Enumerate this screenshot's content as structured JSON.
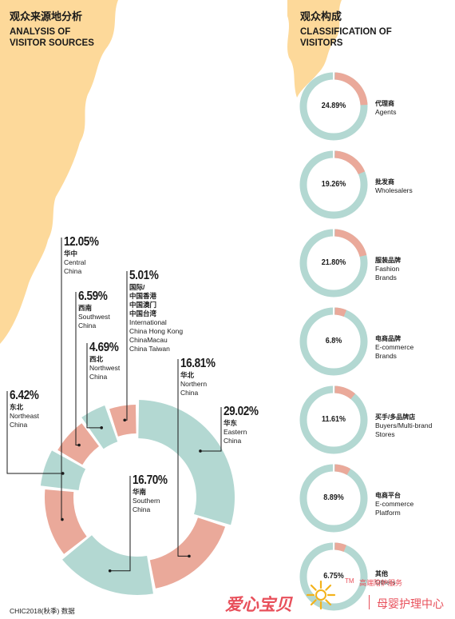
{
  "left_panel": {
    "title_cn": "观众来源地分析",
    "title_en_1": "ANALYSIS OF",
    "title_en_2": "VISITOR SOURCES"
  },
  "right_panel": {
    "title_cn": "观众构成",
    "title_en_1": "CLASSIFICATION OF",
    "title_en_2": "VISITORS"
  },
  "colors": {
    "teal": "#b3d8d2",
    "salmon": "#eaa99a",
    "map": "#fdd99a"
  },
  "chart_data": [
    {
      "type": "pie",
      "title": "",
      "slices": [
        {
          "value": "29.02%",
          "cn": "华东",
          "en": [
            "Eastern",
            "China"
          ],
          "fraction": 0.2902,
          "color": "#b3d8d2"
        },
        {
          "value": "16.81%",
          "cn": "华北",
          "en": [
            "Northern",
            "China"
          ],
          "fraction": 0.1681,
          "color": "#eaa99a"
        },
        {
          "value": "16.70%",
          "cn": "华南",
          "en": [
            "Southern",
            "China"
          ],
          "fraction": 0.167,
          "color": "#b3d8d2"
        },
        {
          "value": "12.05%",
          "cn": "华中",
          "en": [
            "Central",
            "China"
          ],
          "fraction": 0.1205,
          "color": "#eaa99a"
        },
        {
          "value": "6.42%",
          "cn": "东北",
          "en": [
            "Northeast",
            "China"
          ],
          "fraction": 0.0642,
          "color": "#b3d8d2"
        },
        {
          "value": "6.59%",
          "cn": "西南",
          "en": [
            "Southwest",
            "China"
          ],
          "fraction": 0.0659,
          "color": "#eaa99a"
        },
        {
          "value": "4.69%",
          "cn": "西北",
          "en": [
            "Northwest",
            "China"
          ],
          "fraction": 0.0469,
          "color": "#b3d8d2"
        },
        {
          "value": "5.01%",
          "cn": [
            "国际/",
            "中国香港",
            "中国澳门",
            "中国台湾"
          ],
          "en": [
            "International",
            "China Hong Kong",
            "ChinaMacau",
            "China Taiwan"
          ],
          "fraction": 0.0501,
          "color": "#eaa99a"
        }
      ]
    },
    {
      "type": "pie",
      "title": "",
      "rings": [
        {
          "value": "24.89%",
          "fraction": 0.2489,
          "cn": "代理商",
          "en": [
            "Agents"
          ]
        },
        {
          "value": "19.26%",
          "fraction": 0.1926,
          "cn": "批发商",
          "en": [
            "Wholesalers"
          ]
        },
        {
          "value": "21.80%",
          "fraction": 0.218,
          "cn": "服装品牌",
          "en": [
            "Fashion",
            "Brands"
          ]
        },
        {
          "value": "6.8%",
          "fraction": 0.068,
          "cn": "电商品牌",
          "en": [
            "E-commerce",
            "Brands"
          ]
        },
        {
          "value": "11.61%",
          "fraction": 0.1161,
          "cn": "买手/多品牌店",
          "en": [
            "Buyers/Multi-brand",
            "Stores"
          ]
        },
        {
          "value": "8.89%",
          "fraction": 0.0889,
          "cn": "电商平台",
          "en": [
            "E-commerce",
            "Platform"
          ]
        },
        {
          "value": "6.75%",
          "fraction": 0.0675,
          "cn": "其他",
          "en": [
            "Others"
          ]
        }
      ]
    }
  ],
  "footer": "CHIC2018(秋季) 数据",
  "watermark": {
    "brand": "爱心宝贝",
    "tm": "TM",
    "slogan": "高端陪护服务",
    "sub": "母婴护理中心"
  }
}
